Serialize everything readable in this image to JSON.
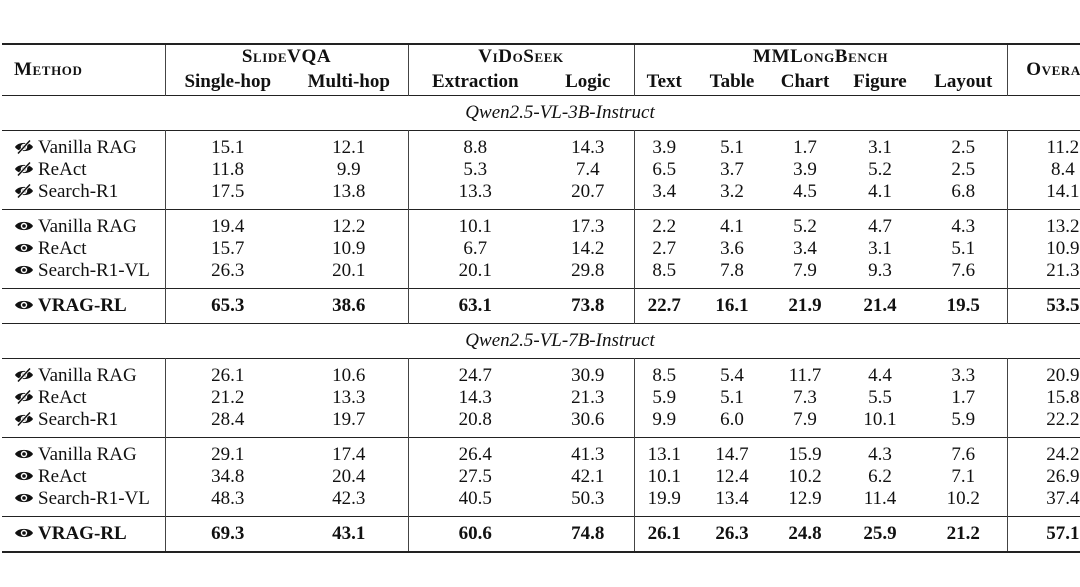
{
  "header": {
    "method": "Method",
    "overall": "Overall",
    "groups": [
      "SlideVQA",
      "ViDoSeek",
      "MMLongBench"
    ],
    "subcols": [
      "Single-hop",
      "Multi-hop",
      "Extraction",
      "Logic",
      "Text",
      "Table",
      "Chart",
      "Figure",
      "Layout"
    ]
  },
  "sections": [
    {
      "title": "Qwen2.5-VL-3B-Instruct",
      "groups": [
        [
          {
            "icon": "eye-slash-icon",
            "name": "Vanilla RAG",
            "values": [
              "15.1",
              "12.1",
              "8.8",
              "14.3",
              "3.9",
              "5.1",
              "1.7",
              "3.1",
              "2.5",
              "11.2"
            ]
          },
          {
            "icon": "eye-slash-icon",
            "name": "ReAct",
            "values": [
              "11.8",
              "9.9",
              "5.3",
              "7.4",
              "6.5",
              "3.7",
              "3.9",
              "5.2",
              "2.5",
              "8.4"
            ]
          },
          {
            "icon": "eye-slash-icon",
            "name": "Search-R1",
            "values": [
              "17.5",
              "13.8",
              "13.3",
              "20.7",
              "3.4",
              "3.2",
              "4.5",
              "4.1",
              "6.8",
              "14.1"
            ]
          }
        ],
        [
          {
            "icon": "eye-icon",
            "name": "Vanilla RAG",
            "values": [
              "19.4",
              "12.2",
              "10.1",
              "17.3",
              "2.2",
              "4.1",
              "5.2",
              "4.7",
              "4.3",
              "13.2"
            ]
          },
          {
            "icon": "eye-icon",
            "name": "ReAct",
            "values": [
              "15.7",
              "10.9",
              "6.7",
              "14.2",
              "2.7",
              "3.6",
              "3.4",
              "3.1",
              "5.1",
              "10.9"
            ]
          },
          {
            "icon": "eye-icon",
            "name": "Search-R1-VL",
            "values": [
              "26.3",
              "20.1",
              "20.1",
              "29.8",
              "8.5",
              "7.8",
              "7.9",
              "9.3",
              "7.6",
              "21.3"
            ]
          }
        ]
      ],
      "best": {
        "icon": "eye-icon",
        "name": "VRAG-RL",
        "values": [
          "65.3",
          "38.6",
          "63.1",
          "73.8",
          "22.7",
          "16.1",
          "21.9",
          "21.4",
          "19.5",
          "53.5"
        ]
      }
    },
    {
      "title": "Qwen2.5-VL-7B-Instruct",
      "groups": [
        [
          {
            "icon": "eye-slash-icon",
            "name": "Vanilla RAG",
            "values": [
              "26.1",
              "10.6",
              "24.7",
              "30.9",
              "8.5",
              "5.4",
              "11.7",
              "4.4",
              "3.3",
              "20.9"
            ]
          },
          {
            "icon": "eye-slash-icon",
            "name": "ReAct",
            "values": [
              "21.2",
              "13.3",
              "14.3",
              "21.3",
              "5.9",
              "5.1",
              "7.3",
              "5.5",
              "1.7",
              "15.8"
            ]
          },
          {
            "icon": "eye-slash-icon",
            "name": "Search-R1",
            "values": [
              "28.4",
              "19.7",
              "20.8",
              "30.6",
              "9.9",
              "6.0",
              "7.9",
              "10.1",
              "5.9",
              "22.2"
            ]
          }
        ],
        [
          {
            "icon": "eye-icon",
            "name": "Vanilla RAG",
            "values": [
              "29.1",
              "17.4",
              "26.4",
              "41.3",
              "13.1",
              "14.7",
              "15.9",
              "4.3",
              "7.6",
              "24.2"
            ]
          },
          {
            "icon": "eye-icon",
            "name": "ReAct",
            "values": [
              "34.8",
              "20.4",
              "27.5",
              "42.1",
              "10.1",
              "12.4",
              "10.2",
              "6.2",
              "7.1",
              "26.9"
            ]
          },
          {
            "icon": "eye-icon",
            "name": "Search-R1-VL",
            "values": [
              "48.3",
              "42.3",
              "40.5",
              "50.3",
              "19.9",
              "13.4",
              "12.9",
              "11.4",
              "10.2",
              "37.4"
            ]
          }
        ]
      ],
      "best": {
        "icon": "eye-icon",
        "name": "VRAG-RL",
        "values": [
          "69.3",
          "43.1",
          "60.6",
          "74.8",
          "26.1",
          "26.3",
          "24.8",
          "25.9",
          "21.2",
          "57.1"
        ]
      }
    }
  ]
}
